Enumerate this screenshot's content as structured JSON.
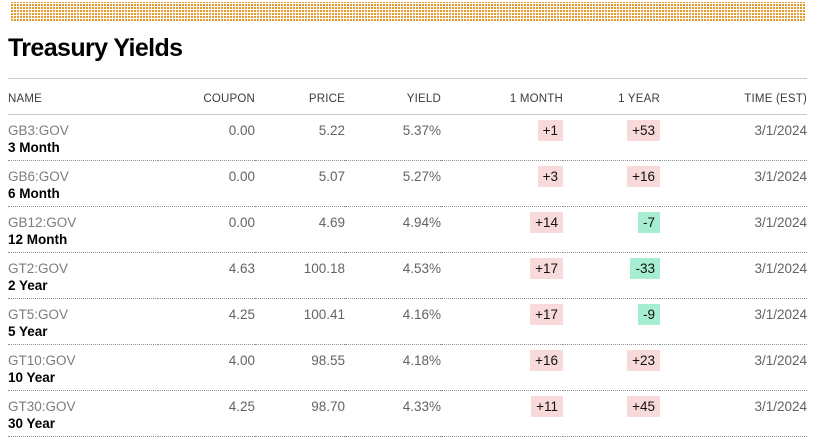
{
  "page": {
    "title": "Treasury Yields"
  },
  "colors": {
    "banner_dot": "#e39a2e",
    "positive_bg": "#f9dada",
    "negative_bg": "#a7edd1"
  },
  "table": {
    "columns": [
      "NAME",
      "COUPON",
      "PRICE",
      "YIELD",
      "1 MONTH",
      "1 YEAR",
      "TIME (EST)"
    ],
    "rows": [
      {
        "ticker": "GB3:GOV",
        "tenor": "3 Month",
        "coupon": "0.00",
        "price": "5.22",
        "yield": "5.37%",
        "one_month": "+1",
        "one_month_dir": "up",
        "one_year": "+53",
        "one_year_dir": "up",
        "time": "3/1/2024"
      },
      {
        "ticker": "GB6:GOV",
        "tenor": "6 Month",
        "coupon": "0.00",
        "price": "5.07",
        "yield": "5.27%",
        "one_month": "+3",
        "one_month_dir": "up",
        "one_year": "+16",
        "one_year_dir": "up",
        "time": "3/1/2024"
      },
      {
        "ticker": "GB12:GOV",
        "tenor": "12 Month",
        "coupon": "0.00",
        "price": "4.69",
        "yield": "4.94%",
        "one_month": "+14",
        "one_month_dir": "up",
        "one_year": "-7",
        "one_year_dir": "down",
        "time": "3/1/2024"
      },
      {
        "ticker": "GT2:GOV",
        "tenor": "2 Year",
        "coupon": "4.63",
        "price": "100.18",
        "yield": "4.53%",
        "one_month": "+17",
        "one_month_dir": "up",
        "one_year": "-33",
        "one_year_dir": "down",
        "time": "3/1/2024"
      },
      {
        "ticker": "GT5:GOV",
        "tenor": "5 Year",
        "coupon": "4.25",
        "price": "100.41",
        "yield": "4.16%",
        "one_month": "+17",
        "one_month_dir": "up",
        "one_year": "-9",
        "one_year_dir": "down",
        "time": "3/1/2024"
      },
      {
        "ticker": "GT10:GOV",
        "tenor": "10 Year",
        "coupon": "4.00",
        "price": "98.55",
        "yield": "4.18%",
        "one_month": "+16",
        "one_month_dir": "up",
        "one_year": "+23",
        "one_year_dir": "up",
        "time": "3/1/2024"
      },
      {
        "ticker": "GT30:GOV",
        "tenor": "30 Year",
        "coupon": "4.25",
        "price": "98.70",
        "yield": "4.33%",
        "one_month": "+11",
        "one_month_dir": "up",
        "one_year": "+45",
        "one_year_dir": "up",
        "time": "3/1/2024"
      }
    ]
  }
}
